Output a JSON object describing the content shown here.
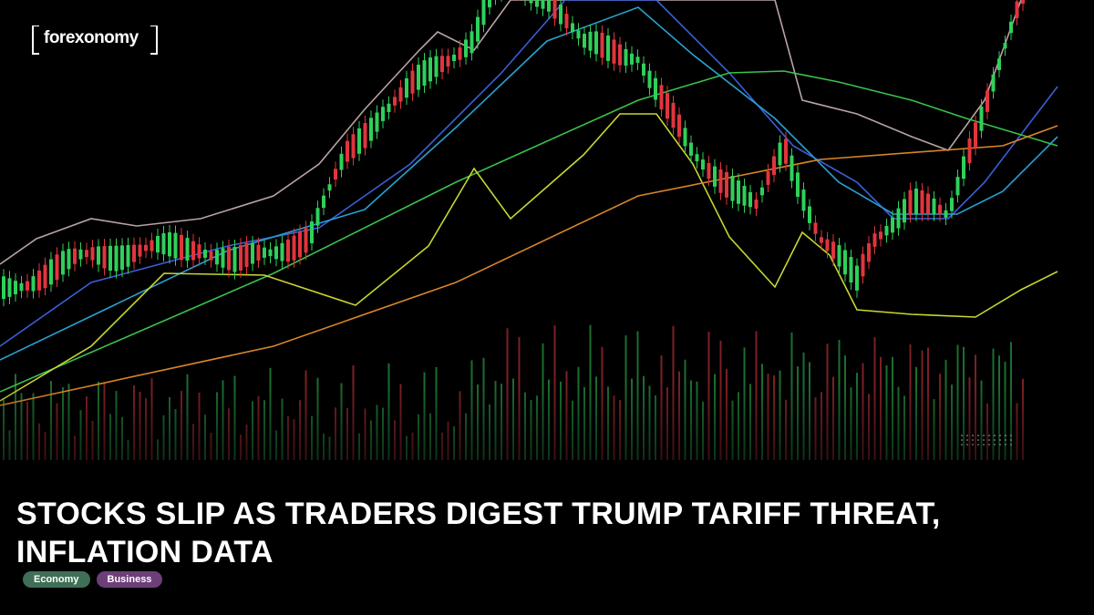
{
  "logo": "forexonomy",
  "headline": "Stocks Slip as Traders Digest Trump Tariff Threat, Inflation Data",
  "tags": [
    "Economy",
    "Business"
  ]
}
